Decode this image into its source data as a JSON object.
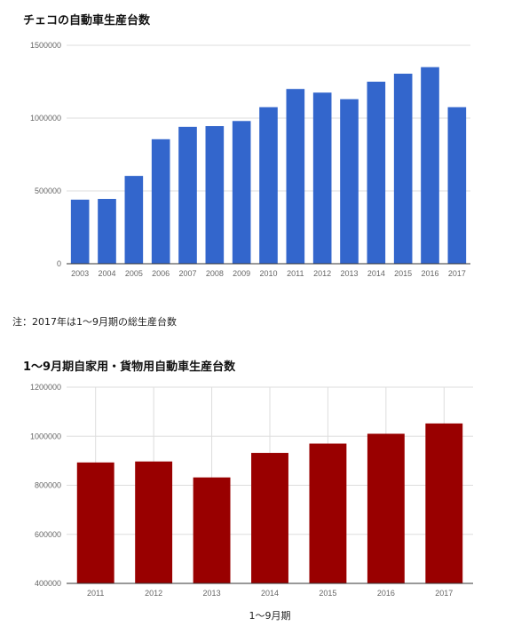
{
  "chart1": {
    "title": "チェコの自動車生産台数",
    "note": "注：2017年は1～9月期の総生産台数"
  },
  "chart2": {
    "title": "1～9月期自家用・貨物用自動車生産台数",
    "xlabel": "1～9月期"
  },
  "chart_data": [
    {
      "type": "bar",
      "title": "チェコの自動車生産台数",
      "categories": [
        "2003",
        "2004",
        "2005",
        "2006",
        "2007",
        "2008",
        "2009",
        "2010",
        "2011",
        "2012",
        "2013",
        "2014",
        "2015",
        "2016",
        "2017"
      ],
      "values": [
        440000,
        445000,
        603000,
        855000,
        940000,
        945000,
        980000,
        1075000,
        1200000,
        1175000,
        1130000,
        1250000,
        1305000,
        1350000,
        1075000
      ],
      "ylim": [
        0,
        1500000
      ],
      "yticks": [
        0,
        500000,
        1000000,
        1500000
      ],
      "color": "#3366cc",
      "grid": "horizontal"
    },
    {
      "type": "bar",
      "title": "1～9月期自家用・貨物用自動車生産台数",
      "categories": [
        "2011",
        "2012",
        "2013",
        "2014",
        "2015",
        "2016",
        "2017"
      ],
      "values": [
        893000,
        897000,
        832000,
        932000,
        970000,
        1010000,
        1052000
      ],
      "ylim": [
        400000,
        1200000
      ],
      "yticks": [
        400000,
        600000,
        800000,
        1000000,
        1200000
      ],
      "xlabel": "1～9月期",
      "color": "#990000",
      "grid": "both"
    }
  ]
}
